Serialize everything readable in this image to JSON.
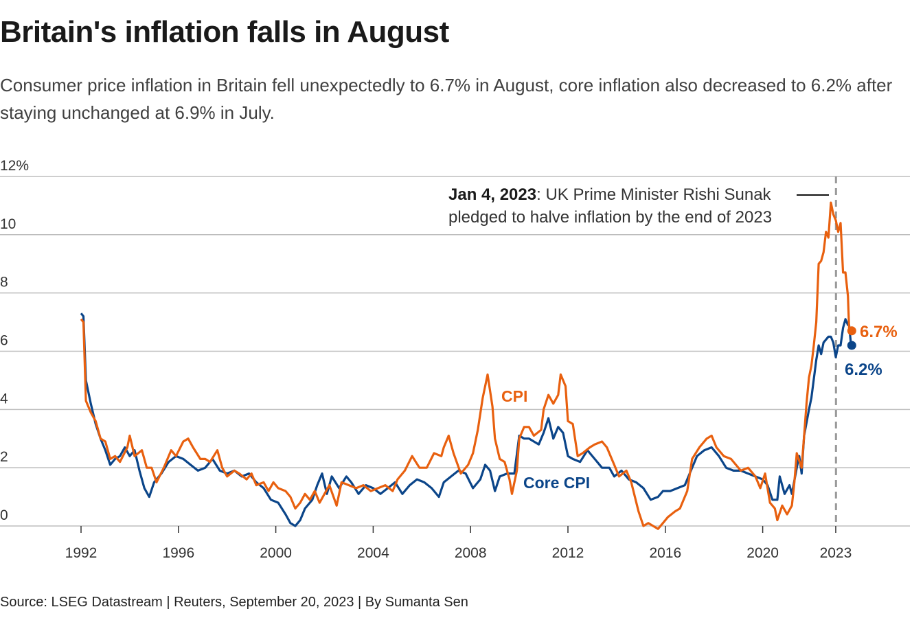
{
  "title": "Britain's inflation falls in August",
  "subtitle": "Consumer price inflation in Britain fell unexpectedly to 6.7% in August, core inflation also decreased to 6.2% after staying unchanged at 6.9% in July.",
  "source": "Source: LSEG Datastream | Reuters, September 20, 2023 | By Sumanta Sen",
  "chart_data": {
    "type": "line",
    "title": "Britain's inflation falls in August",
    "ylim": [
      0,
      12
    ],
    "xlim": [
      1992,
      2026
    ],
    "grid": true,
    "y_ticks": [
      "0",
      "2",
      "4",
      "6",
      "8",
      "10",
      "12%"
    ],
    "y_tick_values": [
      0,
      2,
      4,
      6,
      8,
      10,
      12
    ],
    "x_ticks": [
      "1992",
      "1996",
      "2000",
      "2004",
      "2008",
      "2012",
      "2016",
      "2020",
      "2023"
    ],
    "x_tick_values": [
      1992,
      1996,
      2000,
      2004,
      2008,
      2012,
      2016,
      2020,
      2023
    ],
    "colors": {
      "cpi": "#e8600f",
      "core": "#0b4589",
      "marker": "#999999"
    },
    "series": [
      {
        "name": "CPI",
        "label_text": "CPI",
        "end_label": "6.7%",
        "points": [
          [
            1992.0,
            7.1
          ],
          [
            1992.1,
            7.0
          ],
          [
            1992.2,
            4.3
          ],
          [
            1992.4,
            3.9
          ],
          [
            1992.6,
            3.6
          ],
          [
            1992.8,
            3.0
          ],
          [
            1993.0,
            2.9
          ],
          [
            1993.2,
            2.3
          ],
          [
            1993.4,
            2.4
          ],
          [
            1993.6,
            2.2
          ],
          [
            1993.9,
            2.7
          ],
          [
            1994.0,
            3.1
          ],
          [
            1994.2,
            2.4
          ],
          [
            1994.5,
            2.6
          ],
          [
            1994.7,
            2.0
          ],
          [
            1994.9,
            2.0
          ],
          [
            1995.1,
            1.5
          ],
          [
            1995.4,
            2.0
          ],
          [
            1995.7,
            2.6
          ],
          [
            1995.9,
            2.4
          ],
          [
            1996.2,
            2.9
          ],
          [
            1996.4,
            3.0
          ],
          [
            1996.6,
            2.7
          ],
          [
            1996.9,
            2.3
          ],
          [
            1997.1,
            2.3
          ],
          [
            1997.3,
            2.2
          ],
          [
            1997.6,
            2.6
          ],
          [
            1997.8,
            2.0
          ],
          [
            1998.0,
            1.7
          ],
          [
            1998.3,
            1.9
          ],
          [
            1998.5,
            1.8
          ],
          [
            1998.8,
            1.6
          ],
          [
            1999.0,
            1.8
          ],
          [
            1999.2,
            1.4
          ],
          [
            1999.5,
            1.5
          ],
          [
            1999.7,
            1.2
          ],
          [
            1999.9,
            1.5
          ],
          [
            2000.1,
            1.3
          ],
          [
            2000.4,
            1.2
          ],
          [
            2000.6,
            1.0
          ],
          [
            2000.8,
            0.6
          ],
          [
            2001.0,
            0.8
          ],
          [
            2001.2,
            1.1
          ],
          [
            2001.4,
            0.9
          ],
          [
            2001.6,
            1.2
          ],
          [
            2001.8,
            0.8
          ],
          [
            2002.0,
            1.1
          ],
          [
            2002.2,
            1.4
          ],
          [
            2002.5,
            0.7
          ],
          [
            2002.7,
            1.5
          ],
          [
            2003.0,
            1.4
          ],
          [
            2003.3,
            1.3
          ],
          [
            2003.6,
            1.4
          ],
          [
            2003.9,
            1.2
          ],
          [
            2004.2,
            1.3
          ],
          [
            2004.5,
            1.4
          ],
          [
            2004.8,
            1.2
          ],
          [
            2005.0,
            1.6
          ],
          [
            2005.3,
            1.9
          ],
          [
            2005.6,
            2.4
          ],
          [
            2005.9,
            2.0
          ],
          [
            2006.2,
            2.0
          ],
          [
            2006.5,
            2.5
          ],
          [
            2006.8,
            2.4
          ],
          [
            2006.9,
            2.7
          ],
          [
            2007.1,
            3.1
          ],
          [
            2007.3,
            2.5
          ],
          [
            2007.6,
            1.8
          ],
          [
            2007.9,
            2.1
          ],
          [
            2008.1,
            2.5
          ],
          [
            2008.3,
            3.3
          ],
          [
            2008.5,
            4.4
          ],
          [
            2008.7,
            5.2
          ],
          [
            2008.9,
            4.1
          ],
          [
            2009.0,
            3.0
          ],
          [
            2009.2,
            2.3
          ],
          [
            2009.4,
            2.2
          ],
          [
            2009.6,
            1.6
          ],
          [
            2009.7,
            1.1
          ],
          [
            2009.9,
            1.9
          ],
          [
            2010.0,
            3.0
          ],
          [
            2010.2,
            3.4
          ],
          [
            2010.4,
            3.4
          ],
          [
            2010.6,
            3.1
          ],
          [
            2010.9,
            3.3
          ],
          [
            2011.0,
            4.0
          ],
          [
            2011.2,
            4.5
          ],
          [
            2011.4,
            4.2
          ],
          [
            2011.6,
            4.5
          ],
          [
            2011.7,
            5.2
          ],
          [
            2011.9,
            4.8
          ],
          [
            2012.0,
            3.6
          ],
          [
            2012.2,
            3.5
          ],
          [
            2012.4,
            2.4
          ],
          [
            2012.6,
            2.5
          ],
          [
            2012.9,
            2.7
          ],
          [
            2013.1,
            2.8
          ],
          [
            2013.4,
            2.9
          ],
          [
            2013.6,
            2.7
          ],
          [
            2013.9,
            2.1
          ],
          [
            2014.1,
            1.7
          ],
          [
            2014.4,
            1.9
          ],
          [
            2014.6,
            1.5
          ],
          [
            2014.9,
            0.5
          ],
          [
            2015.1,
            0.0
          ],
          [
            2015.3,
            0.1
          ],
          [
            2015.5,
            0.0
          ],
          [
            2015.7,
            -0.1
          ],
          [
            2015.9,
            0.1
          ],
          [
            2016.1,
            0.3
          ],
          [
            2016.4,
            0.5
          ],
          [
            2016.6,
            0.6
          ],
          [
            2016.9,
            1.2
          ],
          [
            2017.1,
            2.3
          ],
          [
            2017.4,
            2.7
          ],
          [
            2017.7,
            3.0
          ],
          [
            2017.9,
            3.1
          ],
          [
            2018.1,
            2.7
          ],
          [
            2018.4,
            2.4
          ],
          [
            2018.7,
            2.3
          ],
          [
            2018.9,
            2.1
          ],
          [
            2019.1,
            1.9
          ],
          [
            2019.4,
            2.0
          ],
          [
            2019.7,
            1.7
          ],
          [
            2019.9,
            1.3
          ],
          [
            2020.1,
            1.8
          ],
          [
            2020.3,
            0.8
          ],
          [
            2020.5,
            0.6
          ],
          [
            2020.6,
            0.2
          ],
          [
            2020.8,
            0.7
          ],
          [
            2021.0,
            0.4
          ],
          [
            2021.2,
            0.7
          ],
          [
            2021.3,
            1.5
          ],
          [
            2021.4,
            2.5
          ],
          [
            2021.6,
            2.0
          ],
          [
            2021.7,
            3.1
          ],
          [
            2021.8,
            4.2
          ],
          [
            2021.9,
            5.1
          ],
          [
            2022.0,
            5.5
          ],
          [
            2022.1,
            6.2
          ],
          [
            2022.2,
            7.0
          ],
          [
            2022.3,
            9.0
          ],
          [
            2022.4,
            9.1
          ],
          [
            2022.5,
            9.4
          ],
          [
            2022.6,
            10.1
          ],
          [
            2022.7,
            9.9
          ],
          [
            2022.8,
            11.1
          ],
          [
            2022.9,
            10.7
          ],
          [
            2023.0,
            10.5
          ],
          [
            2023.1,
            10.1
          ],
          [
            2023.2,
            10.4
          ],
          [
            2023.3,
            8.7
          ],
          [
            2023.4,
            8.7
          ],
          [
            2023.5,
            7.9
          ],
          [
            2023.55,
            6.8
          ],
          [
            2023.63,
            6.7
          ]
        ]
      },
      {
        "name": "Core CPI",
        "label_text": "Core CPI",
        "end_label": "6.2%",
        "points": [
          [
            1992.0,
            7.3
          ],
          [
            1992.1,
            7.2
          ],
          [
            1992.2,
            5.0
          ],
          [
            1992.4,
            4.2
          ],
          [
            1992.6,
            3.5
          ],
          [
            1992.8,
            3.0
          ],
          [
            1993.0,
            2.6
          ],
          [
            1993.2,
            2.1
          ],
          [
            1993.4,
            2.3
          ],
          [
            1993.6,
            2.4
          ],
          [
            1993.8,
            2.7
          ],
          [
            1994.0,
            2.4
          ],
          [
            1994.2,
            2.6
          ],
          [
            1994.4,
            1.9
          ],
          [
            1994.6,
            1.3
          ],
          [
            1994.8,
            1.0
          ],
          [
            1995.0,
            1.5
          ],
          [
            1995.3,
            1.8
          ],
          [
            1995.6,
            2.2
          ],
          [
            1995.9,
            2.4
          ],
          [
            1996.2,
            2.3
          ],
          [
            1996.5,
            2.1
          ],
          [
            1996.8,
            1.9
          ],
          [
            1997.1,
            2.0
          ],
          [
            1997.4,
            2.3
          ],
          [
            1997.7,
            1.9
          ],
          [
            1998.0,
            1.8
          ],
          [
            1998.3,
            1.9
          ],
          [
            1998.6,
            1.7
          ],
          [
            1998.9,
            1.8
          ],
          [
            1999.2,
            1.5
          ],
          [
            1999.5,
            1.3
          ],
          [
            1999.8,
            0.9
          ],
          [
            2000.1,
            0.8
          ],
          [
            2000.4,
            0.4
          ],
          [
            2000.6,
            0.1
          ],
          [
            2000.8,
            0.0
          ],
          [
            2001.0,
            0.2
          ],
          [
            2001.2,
            0.6
          ],
          [
            2001.5,
            0.9
          ],
          [
            2001.7,
            1.4
          ],
          [
            2001.9,
            1.8
          ],
          [
            2002.1,
            1.1
          ],
          [
            2002.3,
            1.7
          ],
          [
            2002.6,
            1.3
          ],
          [
            2002.9,
            1.7
          ],
          [
            2003.1,
            1.5
          ],
          [
            2003.4,
            1.1
          ],
          [
            2003.7,
            1.4
          ],
          [
            2004.0,
            1.3
          ],
          [
            2004.3,
            1.1
          ],
          [
            2004.6,
            1.3
          ],
          [
            2004.9,
            1.5
          ],
          [
            2005.2,
            1.1
          ],
          [
            2005.5,
            1.4
          ],
          [
            2005.8,
            1.6
          ],
          [
            2006.1,
            1.5
          ],
          [
            2006.4,
            1.3
          ],
          [
            2006.7,
            1.0
          ],
          [
            2006.9,
            1.5
          ],
          [
            2007.2,
            1.7
          ],
          [
            2007.5,
            1.9
          ],
          [
            2007.8,
            1.8
          ],
          [
            2008.1,
            1.3
          ],
          [
            2008.4,
            1.6
          ],
          [
            2008.6,
            2.1
          ],
          [
            2008.8,
            1.9
          ],
          [
            2009.0,
            1.2
          ],
          [
            2009.2,
            1.7
          ],
          [
            2009.5,
            1.8
          ],
          [
            2009.8,
            1.8
          ],
          [
            2010.0,
            3.1
          ],
          [
            2010.2,
            3.0
          ],
          [
            2010.4,
            3.0
          ],
          [
            2010.6,
            2.9
          ],
          [
            2010.8,
            2.8
          ],
          [
            2011.0,
            3.2
          ],
          [
            2011.2,
            3.7
          ],
          [
            2011.4,
            3.0
          ],
          [
            2011.6,
            3.4
          ],
          [
            2011.8,
            3.2
          ],
          [
            2012.0,
            2.4
          ],
          [
            2012.2,
            2.3
          ],
          [
            2012.5,
            2.2
          ],
          [
            2012.8,
            2.6
          ],
          [
            2013.1,
            2.3
          ],
          [
            2013.4,
            2.0
          ],
          [
            2013.7,
            2.0
          ],
          [
            2013.9,
            1.7
          ],
          [
            2014.2,
            1.9
          ],
          [
            2014.5,
            1.6
          ],
          [
            2014.8,
            1.5
          ],
          [
            2015.1,
            1.3
          ],
          [
            2015.4,
            0.9
          ],
          [
            2015.7,
            1.0
          ],
          [
            2015.9,
            1.2
          ],
          [
            2016.2,
            1.2
          ],
          [
            2016.5,
            1.3
          ],
          [
            2016.8,
            1.4
          ],
          [
            2017.0,
            1.8
          ],
          [
            2017.3,
            2.4
          ],
          [
            2017.6,
            2.6
          ],
          [
            2017.9,
            2.7
          ],
          [
            2018.2,
            2.4
          ],
          [
            2018.5,
            2.0
          ],
          [
            2018.8,
            1.9
          ],
          [
            2019.1,
            1.9
          ],
          [
            2019.4,
            1.8
          ],
          [
            2019.7,
            1.7
          ],
          [
            2020.0,
            1.6
          ],
          [
            2020.2,
            1.4
          ],
          [
            2020.4,
            0.9
          ],
          [
            2020.6,
            0.9
          ],
          [
            2020.7,
            1.7
          ],
          [
            2020.9,
            1.1
          ],
          [
            2021.1,
            1.4
          ],
          [
            2021.2,
            1.1
          ],
          [
            2021.4,
            2.0
          ],
          [
            2021.5,
            2.4
          ],
          [
            2021.6,
            1.8
          ],
          [
            2021.7,
            3.1
          ],
          [
            2021.9,
            4.0
          ],
          [
            2022.0,
            4.4
          ],
          [
            2022.2,
            5.7
          ],
          [
            2022.3,
            6.2
          ],
          [
            2022.4,
            5.9
          ],
          [
            2022.5,
            6.3
          ],
          [
            2022.7,
            6.5
          ],
          [
            2022.8,
            6.5
          ],
          [
            2022.9,
            6.3
          ],
          [
            2023.0,
            5.8
          ],
          [
            2023.1,
            6.2
          ],
          [
            2023.2,
            6.2
          ],
          [
            2023.3,
            6.8
          ],
          [
            2023.4,
            7.1
          ],
          [
            2023.5,
            6.9
          ],
          [
            2023.55,
            6.9
          ],
          [
            2023.63,
            6.2
          ]
        ]
      }
    ],
    "annotation": {
      "date": "Jan 4, 2023",
      "x": 2023.01,
      "text_line1": ": UK Prime Minister Rishi Sunak",
      "text_line2": "pledged to halve inflation by the end of 2023"
    }
  }
}
